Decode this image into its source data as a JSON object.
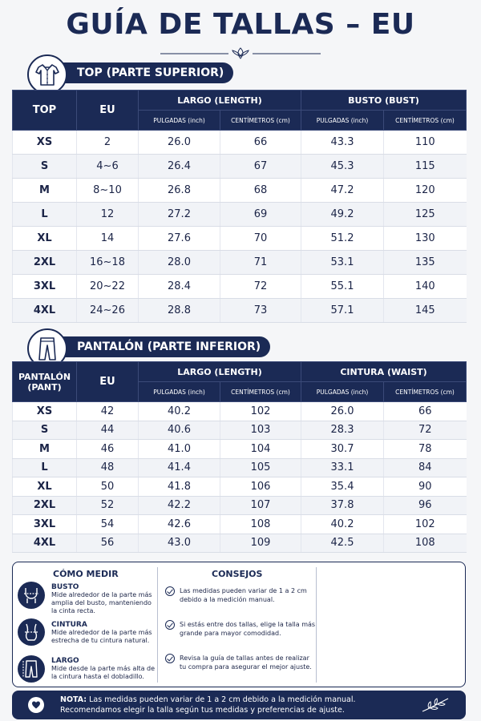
{
  "title": "GUÍA DE TALLAS – EU",
  "top_section": {
    "heading": "TOP (PARTE SUPERIOR)",
    "icon": "shirt-icon",
    "headers": {
      "size": "TOP",
      "eu": "EU",
      "length": "LARGO (LENGTH)",
      "chest": "BUSTO (BUST)",
      "inch": "PULGADAS (inch)",
      "cm": "CENTÍMETROS (cm)"
    },
    "rows": [
      {
        "size": "XS",
        "eu": "2",
        "len_in": "26.0",
        "len_cm": "66",
        "bust_in": "43.3",
        "bust_cm": "110"
      },
      {
        "size": "S",
        "eu": "4~6",
        "len_in": "26.4",
        "len_cm": "67",
        "bust_in": "45.3",
        "bust_cm": "115"
      },
      {
        "size": "M",
        "eu": "8~10",
        "len_in": "26.8",
        "len_cm": "68",
        "bust_in": "47.2",
        "bust_cm": "120"
      },
      {
        "size": "L",
        "eu": "12",
        "len_in": "27.2",
        "len_cm": "69",
        "bust_in": "49.2",
        "bust_cm": "125"
      },
      {
        "size": "XL",
        "eu": "14",
        "len_in": "27.6",
        "len_cm": "70",
        "bust_in": "51.2",
        "bust_cm": "130"
      },
      {
        "size": "2XL",
        "eu": "16~18",
        "len_in": "28.0",
        "len_cm": "71",
        "bust_in": "53.1",
        "bust_cm": "135"
      },
      {
        "size": "3XL",
        "eu": "20~22",
        "len_in": "28.4",
        "len_cm": "72",
        "bust_in": "55.1",
        "bust_cm": "140"
      },
      {
        "size": "4XL",
        "eu": "24~26",
        "len_in": "28.8",
        "len_cm": "73",
        "bust_in": "57.1",
        "bust_cm": "145"
      }
    ]
  },
  "pant_section": {
    "heading": "PANTALÓN (PARTE INFERIOR)",
    "icon": "pants-icon",
    "headers": {
      "size": "PANTALÓN (PANT)",
      "eu": "EU",
      "length": "LARGO (LENGTH)",
      "waist": "CINTURA (WAIST)",
      "inch": "PULGADAS (inch)",
      "cm": "CENTÍMETROS (cm)"
    },
    "rows": [
      {
        "size": "XS",
        "eu": "42",
        "len_in": "40.2",
        "len_cm": "102",
        "waist_in": "26.0",
        "waist_cm": "66"
      },
      {
        "size": "S",
        "eu": "44",
        "len_in": "40.6",
        "len_cm": "103",
        "waist_in": "28.3",
        "waist_cm": "72"
      },
      {
        "size": "M",
        "eu": "46",
        "len_in": "41.0",
        "len_cm": "104",
        "waist_in": "30.7",
        "waist_cm": "78"
      },
      {
        "size": "L",
        "eu": "48",
        "len_in": "41.4",
        "len_cm": "105",
        "waist_in": "33.1",
        "waist_cm": "84"
      },
      {
        "size": "XL",
        "eu": "50",
        "len_in": "41.8",
        "len_cm": "106",
        "waist_in": "35.4",
        "waist_cm": "90"
      },
      {
        "size": "2XL",
        "eu": "52",
        "len_in": "42.2",
        "len_cm": "107",
        "waist_in": "37.8",
        "waist_cm": "96"
      },
      {
        "size": "3XL",
        "eu": "54",
        "len_in": "42.6",
        "len_cm": "108",
        "waist_in": "40.2",
        "waist_cm": "102"
      },
      {
        "size": "4XL",
        "eu": "56",
        "len_in": "43.0",
        "len_cm": "109",
        "waist_in": "42.5",
        "waist_cm": "108"
      }
    ]
  },
  "how_to_measure": {
    "heading": "CÓMO MEDIR",
    "items": [
      {
        "label": "BUSTO",
        "text": "Mide alrededor de la parte más amplia del busto, manteniendo la cinta recta.",
        "icon": "bust-icon"
      },
      {
        "label": "CINTURA",
        "text": "Mide alrededor de la parte más estrecha de tu cintura natural.",
        "icon": "waist-icon"
      },
      {
        "label": "LARGO",
        "text": "Mide desde la parte más alta de la cintura hasta el dobladillo.",
        "icon": "length-icon"
      }
    ]
  },
  "tips": {
    "heading": "CONSEJOS",
    "items": [
      "Las medidas pueden variar de 1 a 2 cm debido a la medición manual.",
      "Si estás entre dos tallas, elige la talla más grande para mayor comodidad.",
      "Revisa la guía de tallas antes de realizar tu compra para asegurar el mejor ajuste."
    ]
  },
  "note": {
    "label": "NOTA:",
    "line1": "Las medidas pueden variar de 1 a 2 cm debido a la medición manual.",
    "line2": "Recomendamos elegir la talla según tus medidas y preferencias de ajuste."
  },
  "colors": {
    "navy": "#1b2a55",
    "background": "#f5f6f8",
    "row_alt": "#f1f3f7"
  }
}
